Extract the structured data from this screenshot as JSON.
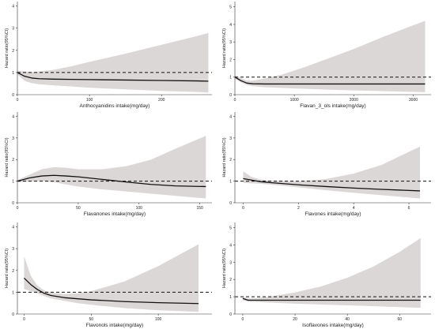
{
  "chart_data": [
    {
      "type": "area",
      "xlabel": "Anthocyanidins intake(mg/day)",
      "ylabel": "Hazard ratio(95%CI)",
      "xlim": [
        0,
        270
      ],
      "ylim": [
        0,
        4.2
      ],
      "xticks": [
        0,
        100,
        200
      ],
      "yticks": [
        0,
        1,
        2,
        3,
        4
      ],
      "reference_line": 1,
      "grid": false,
      "series": [
        {
          "x": [
            0,
            10,
            20,
            30,
            50,
            75,
            100,
            150,
            200,
            250,
            265
          ],
          "hr": [
            1.0,
            0.83,
            0.75,
            0.72,
            0.7,
            0.69,
            0.68,
            0.66,
            0.64,
            0.62,
            0.61
          ],
          "lower": [
            0.92,
            0.62,
            0.52,
            0.47,
            0.42,
            0.37,
            0.31,
            0.24,
            0.17,
            0.12,
            0.1
          ],
          "upper": [
            1.08,
            1.05,
            1.02,
            1.05,
            1.12,
            1.28,
            1.48,
            1.85,
            2.25,
            2.65,
            2.78
          ]
        }
      ]
    },
    {
      "type": "area",
      "xlabel": "Flavan_3_ols intake(mg/day)",
      "ylabel": "Hazard ratio(95%CI)",
      "xlim": [
        0,
        3300
      ],
      "ylim": [
        0,
        5.3
      ],
      "xticks": [
        0,
        1000,
        2000,
        3000
      ],
      "yticks": [
        0,
        1,
        2,
        3,
        4,
        5
      ],
      "reference_line": 1,
      "grid": false,
      "series": [
        {
          "x": [
            0,
            100,
            200,
            300,
            500,
            800,
            1200,
            1600,
            2000,
            2500,
            3000,
            3200
          ],
          "hr": [
            1.0,
            0.8,
            0.66,
            0.62,
            0.61,
            0.61,
            0.61,
            0.61,
            0.61,
            0.61,
            0.61,
            0.61
          ],
          "lower": [
            0.9,
            0.7,
            0.55,
            0.48,
            0.42,
            0.38,
            0.33,
            0.28,
            0.24,
            0.2,
            0.16,
            0.14
          ],
          "upper": [
            1.1,
            0.95,
            0.8,
            0.8,
            0.92,
            1.15,
            1.6,
            2.1,
            2.6,
            3.3,
            3.95,
            4.2
          ]
        }
      ]
    },
    {
      "type": "area",
      "xlabel": "Flavanones intake(mg/day)",
      "ylabel": "Hazard ratio(95%CI)",
      "xlim": [
        0,
        160
      ],
      "ylim": [
        0,
        4.2
      ],
      "xticks": [
        0,
        50,
        100,
        150
      ],
      "yticks": [
        0,
        1,
        2,
        3,
        4
      ],
      "reference_line": 1,
      "grid": false,
      "series": [
        {
          "x": [
            0,
            10,
            20,
            30,
            40,
            50,
            70,
            90,
            110,
            130,
            155
          ],
          "hr": [
            1.0,
            1.15,
            1.24,
            1.27,
            1.24,
            1.2,
            1.08,
            0.96,
            0.85,
            0.78,
            0.75
          ],
          "lower": [
            0.95,
            0.98,
            1.0,
            0.95,
            0.85,
            0.75,
            0.62,
            0.52,
            0.42,
            0.32,
            0.2
          ],
          "upper": [
            1.05,
            1.3,
            1.55,
            1.65,
            1.62,
            1.55,
            1.55,
            1.7,
            2.0,
            2.5,
            3.1
          ]
        }
      ]
    },
    {
      "type": "area",
      "xlabel": "Flavones intake(mg/day)",
      "ylabel": "Hazard ratio(95%CI)",
      "xlim": [
        -0.3,
        6.8
      ],
      "ylim": [
        0,
        4.2
      ],
      "xticks": [
        0,
        2,
        4,
        6
      ],
      "yticks": [
        0,
        1,
        2,
        3,
        4
      ],
      "reference_line": 1,
      "grid": false,
      "series": [
        {
          "x": [
            0,
            0.3,
            0.6,
            1,
            1.5,
            2,
            3,
            4,
            5,
            6.4
          ],
          "hr": [
            1.12,
            1.05,
            0.98,
            0.93,
            0.88,
            0.83,
            0.75,
            0.68,
            0.62,
            0.55
          ],
          "lower": [
            0.92,
            0.9,
            0.88,
            0.84,
            0.78,
            0.71,
            0.58,
            0.46,
            0.35,
            0.2
          ],
          "upper": [
            1.45,
            1.2,
            1.08,
            1.02,
            1.0,
            1.0,
            1.1,
            1.35,
            1.75,
            2.6
          ]
        }
      ]
    },
    {
      "type": "area",
      "xlabel": "Flavonols intake(mg/day)",
      "ylabel": "Hazard ratio(95%CI)",
      "xlim": [
        -5,
        140
      ],
      "ylim": [
        0,
        4.2
      ],
      "xticks": [
        0,
        50,
        100
      ],
      "yticks": [
        0,
        1,
        2,
        3,
        4
      ],
      "reference_line": 1,
      "grid": false,
      "series": [
        {
          "x": [
            0,
            5,
            10,
            15,
            20,
            30,
            40,
            50,
            75,
            100,
            130
          ],
          "hr": [
            1.65,
            1.35,
            1.12,
            0.95,
            0.85,
            0.75,
            0.7,
            0.65,
            0.57,
            0.52,
            0.48
          ],
          "lower": [
            1.15,
            1.05,
            0.95,
            0.82,
            0.72,
            0.6,
            0.5,
            0.42,
            0.27,
            0.17,
            0.1
          ],
          "upper": [
            2.65,
            1.75,
            1.3,
            1.08,
            0.98,
            0.92,
            0.95,
            1.05,
            1.5,
            2.2,
            3.2
          ]
        }
      ]
    },
    {
      "type": "area",
      "xlabel": "Isoflavones intake(mg/day)",
      "ylabel": "Hazard ratio(95%CI)",
      "xlim": [
        -3,
        72
      ],
      "ylim": [
        0,
        5.3
      ],
      "xticks": [
        0,
        20,
        40,
        60
      ],
      "yticks": [
        0,
        1,
        2,
        3,
        4,
        5
      ],
      "reference_line": 1,
      "grid": false,
      "series": [
        {
          "x": [
            0,
            2,
            5,
            10,
            20,
            30,
            40,
            50,
            60,
            68
          ],
          "hr": [
            0.9,
            0.8,
            0.8,
            0.8,
            0.8,
            0.8,
            0.8,
            0.8,
            0.8,
            0.8
          ],
          "lower": [
            0.8,
            0.72,
            0.7,
            0.66,
            0.6,
            0.55,
            0.5,
            0.45,
            0.4,
            0.36
          ],
          "upper": [
            1.0,
            0.9,
            0.92,
            1.0,
            1.25,
            1.6,
            2.1,
            2.75,
            3.6,
            4.4
          ]
        }
      ]
    }
  ],
  "colors": {
    "band": "#dcd7d7",
    "line": "#111111",
    "reference": "#111111",
    "axis": "#333333"
  }
}
